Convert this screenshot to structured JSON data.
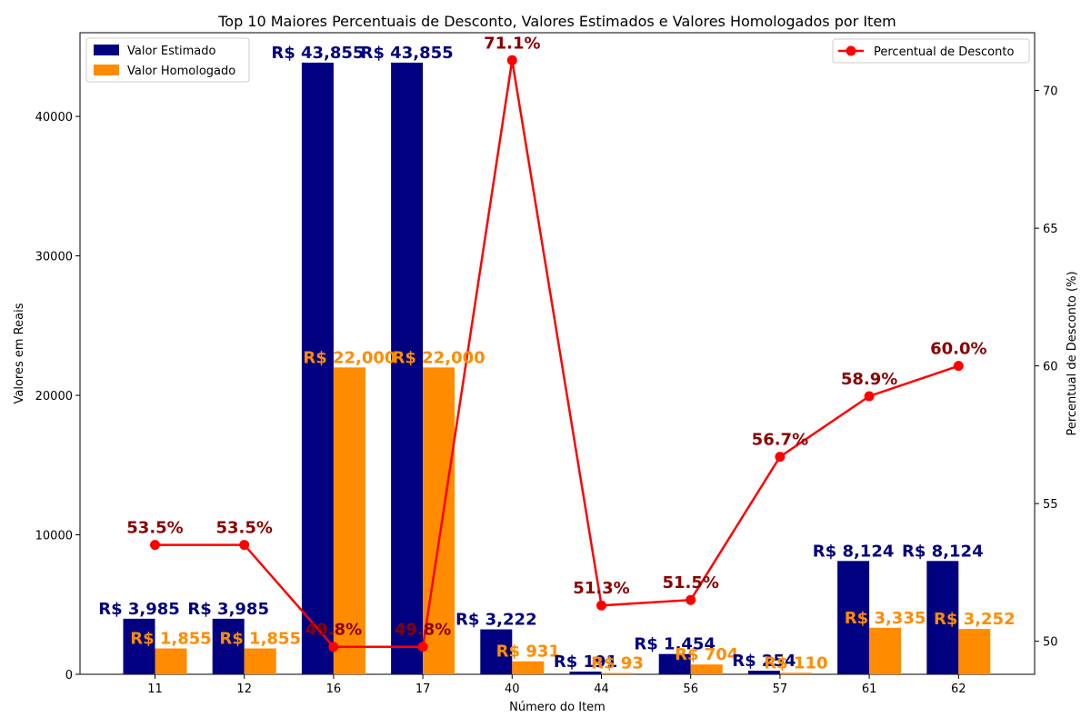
{
  "chart_data": {
    "type": "bar",
    "title": "Top 10 Maiores Percentuais de Desconto, Valores Estimados e Valores Homologados por Item",
    "xlabel": "Número do Item",
    "ylabel": "Valores em Reais",
    "y2label": "Percentual de Desconto (%)",
    "categories": [
      "11",
      "12",
      "16",
      "17",
      "40",
      "44",
      "56",
      "57",
      "61",
      "62"
    ],
    "ylim": [
      0,
      46000
    ],
    "y2lim": [
      48.8,
      72.1
    ],
    "yticks": [
      0,
      10000,
      20000,
      30000,
      40000
    ],
    "y2ticks": [
      50,
      55,
      60,
      65,
      70
    ],
    "grid": false,
    "legend_left_position": "upper-left",
    "legend_right_position": "upper-right",
    "series": [
      {
        "name": "Valor Estimado",
        "kind": "bar",
        "axis": "left",
        "color": "#000080",
        "values": [
          3985,
          3985,
          43855,
          43855,
          3222,
          191,
          1454,
          254,
          8124,
          8124
        ],
        "labels": [
          "R$ 3,985",
          "R$ 3,985",
          "R$ 43,855",
          "R$ 43,855",
          "R$ 3,222",
          "R$ 191",
          "R$ 1,454",
          "R$ 254",
          "R$ 8,124",
          "R$ 8,124"
        ]
      },
      {
        "name": "Valor Homologado",
        "kind": "bar",
        "axis": "left",
        "color": "#ff8c00",
        "values": [
          1855,
          1855,
          22000,
          22000,
          931,
          93,
          704,
          110,
          3335,
          3252
        ],
        "labels": [
          "R$ 1,855",
          "R$ 1,855",
          "R$ 22,000",
          "R$ 22,000",
          "R$ 931",
          "R$ 93",
          "R$ 704",
          "R$ 110",
          "R$ 3,335",
          "R$ 3,252"
        ]
      },
      {
        "name": "Percentual de Desconto",
        "kind": "line",
        "axis": "right",
        "color": "#ff0000",
        "label_color": "#8b0000",
        "values": [
          53.5,
          53.5,
          49.8,
          49.8,
          71.1,
          51.3,
          51.5,
          56.7,
          58.9,
          60.0
        ],
        "labels": [
          "53.5%",
          "53.5%",
          "49.8%",
          "49.8%",
          "71.1%",
          "51.3%",
          "51.5%",
          "56.7%",
          "58.9%",
          "60.0%"
        ]
      }
    ]
  }
}
